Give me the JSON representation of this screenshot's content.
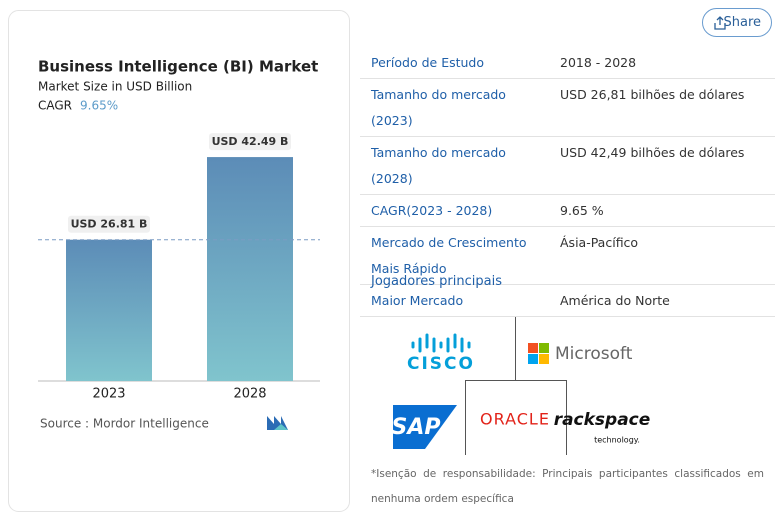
{
  "share": "Share",
  "chart_data": {
    "type": "bar",
    "title": "Business Intelligence (BI) Market",
    "subtitle": "Market Size in USD Billion",
    "cagr_label": "CAGR",
    "cagr_value": "9.65%",
    "categories": [
      "2023",
      "2028"
    ],
    "values": [
      26.81,
      42.49
    ],
    "value_labels": [
      "USD 26.81 B",
      "USD 42.49 B"
    ],
    "source": "Source : Mordor Intelligence"
  },
  "table": {
    "rows": [
      [
        "Período de Estudo",
        "2018 - 2028"
      ],
      [
        "Tamanho do mercado (2023)",
        "USD 26,81 bilhões de dólares"
      ],
      [
        "Tamanho do mercado (2028)",
        "USD 42,49 bilhões de dólares"
      ],
      [
        "CAGR(2023 - 2028)",
        "9.65 %"
      ],
      [
        "Mercado de Crescimento Mais Rápido",
        "Ásia-Pacífico"
      ],
      [
        "Maior Mercado",
        "América do Norte"
      ]
    ]
  },
  "players": {
    "title": "Jogadores principais",
    "logos": [
      "CISCO",
      "Microsoft",
      "SAP",
      "ORACLE",
      "rackspace",
      "technology."
    ]
  },
  "disclaimer": "*Isenção de responsabilidade: Principais participantes classificados em nenhuma ordem específica"
}
